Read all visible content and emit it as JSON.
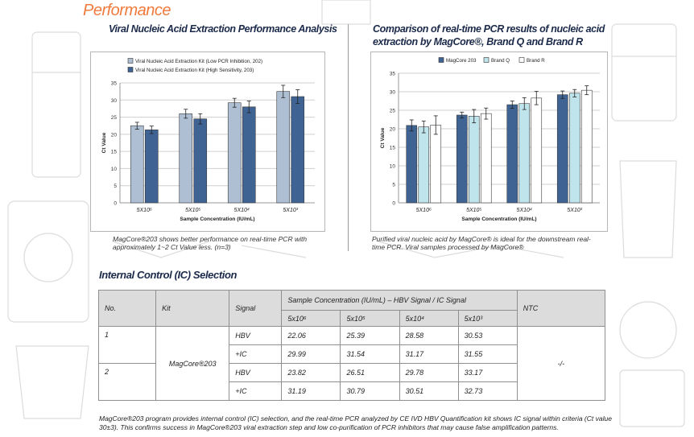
{
  "section_title": "Performance",
  "left_chart": {
    "heading": "Viral Nucleic Acid Extraction Performance Analysis",
    "caption": "MagCore®203 shows better performance on real-time PCR with approximately 1~2 Ct Value less. (n=3)"
  },
  "right_chart": {
    "heading_line1": "Comparison of real-time PCR results of nucleic acid",
    "heading_line2": "extraction by MagCore®, Brand Q and Brand R",
    "caption": "Purified viral nucleic acid by MagCore® is ideal for the downstream real-time PCR. Viral samples processed by MagCore®"
  },
  "chart_data": [
    {
      "type": "bar",
      "categories": [
        "5X10⁶",
        "5X10⁵",
        "5X10⁴",
        "5X10³"
      ],
      "series": [
        {
          "name": "Viral Nucleic Acid Extraction Kit (Low PCR Inhibition, 202)",
          "values": [
            22.5,
            26.0,
            29.2,
            32.5
          ],
          "errors": [
            1.0,
            1.3,
            1.3,
            1.8
          ],
          "color": "#aebfd4"
        },
        {
          "name": "Viral Nucleic Acid Extraction Kit (High Sensitivity, 203)",
          "values": [
            21.3,
            24.5,
            28.0,
            31.0
          ],
          "errors": [
            1.1,
            1.5,
            1.7,
            2.0
          ],
          "color": "#3f6393"
        }
      ],
      "xlabel": "Sample Concentration (IU/mL)",
      "ylabel": "Ct Value",
      "ylim": [
        0,
        35
      ],
      "yticks": [
        "0",
        "5",
        "10",
        "15",
        "20",
        "25",
        "30",
        "35"
      ],
      "legend_position": "top"
    },
    {
      "type": "bar",
      "categories": [
        "5X10⁶",
        "5X10⁵",
        "5X10⁴",
        "5X10³"
      ],
      "series": [
        {
          "name": "MagCore 203",
          "values": [
            20.9,
            23.7,
            26.5,
            29.2
          ],
          "errors": [
            1.5,
            0.8,
            1.0,
            1.0
          ],
          "color": "#3f6393"
        },
        {
          "name": "Brand Q",
          "values": [
            20.5,
            23.4,
            26.8,
            29.6
          ],
          "errors": [
            1.6,
            1.8,
            1.6,
            1.0
          ],
          "color": "#bfe4ec"
        },
        {
          "name": "Brand R",
          "values": [
            21.0,
            24.1,
            28.3,
            30.4
          ],
          "errors": [
            2.5,
            1.5,
            1.8,
            1.2
          ],
          "color": "#ffffff"
        }
      ],
      "xlabel": "Sample Concentration (IU/mL)",
      "ylabel": "Ct Value",
      "ylim": [
        0,
        35
      ],
      "yticks": [
        "0",
        "5",
        "10",
        "15",
        "20",
        "25",
        "30",
        "35"
      ],
      "legend_position": "top"
    }
  ],
  "ic": {
    "title": "Internal Control (IC) Selection",
    "headers": {
      "no": "No.",
      "kit": "Kit",
      "signal": "Signal",
      "group": "Sample Concentration (IU/mL) – HBV Signal / IC Signal",
      "ntc": "NTC",
      "conc": [
        "5x10⁶",
        "5x10⁵",
        "5x10⁴",
        "5x10³"
      ]
    },
    "kit": "MagCore®203",
    "ntc_value": "-/-",
    "rows": [
      {
        "no": "1",
        "signal": "HBV",
        "values": [
          "22.06",
          "25.39",
          "28.58",
          "30.53"
        ]
      },
      {
        "no": "",
        "signal": "+IC",
        "values": [
          "29.99",
          "31.54",
          "31.17",
          "31.55"
        ]
      },
      {
        "no": "2",
        "signal": "HBV",
        "values": [
          "23.82",
          "26.51",
          "29.78",
          "33.17"
        ]
      },
      {
        "no": "",
        "signal": "+IC",
        "values": [
          "31.19",
          "30.79",
          "30.51",
          "32.73"
        ]
      }
    ],
    "footnote": "MagCore®203 program provides internal control (IC) selection, and the real-time PCR analyzed by CE IVD HBV Quantification kit shows IC signal within criteria (Ct value 30±3). This confirms success in MagCore®203 viral extraction step and low co-purification of PCR inhibitors that may cause false amplification patterns."
  }
}
